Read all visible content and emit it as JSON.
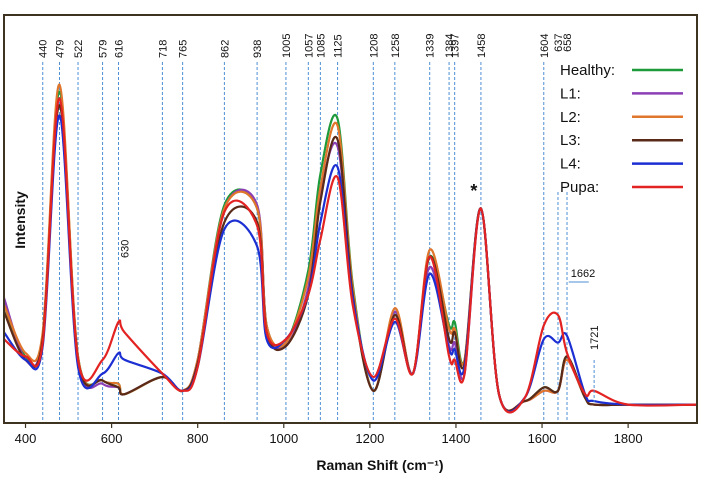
{
  "chart_data": {
    "type": "line",
    "xlabel": "Raman Shift (cm⁻¹)",
    "ylabel": "Intensity",
    "xlim": [
      350,
      1960
    ],
    "ylim": [
      0,
      1.0
    ],
    "x_ticks": [
      400,
      600,
      800,
      1000,
      1200,
      1400,
      1600,
      1800
    ],
    "grid": false,
    "legend_position": "top-right",
    "peak_markers": [
      440,
      479,
      522,
      579,
      616,
      718,
      765,
      862,
      938,
      1005,
      1057,
      1085,
      1125,
      1208,
      1258,
      1339,
      1384,
      1397,
      1458,
      1604,
      1637,
      1658
    ],
    "annotations": [
      {
        "text": "630",
        "x": 630
      },
      {
        "text": "*",
        "x": 1458
      },
      {
        "text": "1662",
        "x": 1662
      },
      {
        "text": "1721",
        "x": 1721
      }
    ],
    "x": [
      350,
      400,
      440,
      479,
      522,
      579,
      616,
      630,
      718,
      765,
      800,
      862,
      938,
      960,
      1005,
      1057,
      1085,
      1125,
      1160,
      1208,
      1258,
      1300,
      1339,
      1384,
      1397,
      1420,
      1458,
      1500,
      1560,
      1604,
      1637,
      1658,
      1700,
      1721,
      1800,
      1960
    ],
    "series": [
      {
        "name": "Healthy:",
        "color": "#1e9a3a",
        "values": [
          0.3,
          0.15,
          0.2,
          0.92,
          0.15,
          0.08,
          0.07,
          0.04,
          0.09,
          0.05,
          0.14,
          0.59,
          0.58,
          0.24,
          0.19,
          0.4,
          0.68,
          0.84,
          0.36,
          0.05,
          0.28,
          0.1,
          0.44,
          0.24,
          0.25,
          0.14,
          0.58,
          0.04,
          0.02,
          0.06,
          0.05,
          0.15,
          0.03,
          0.01,
          0.01,
          0.01
        ]
      },
      {
        "name": "L1:",
        "color": "#8b3fb5",
        "values": [
          0.32,
          0.14,
          0.21,
          0.9,
          0.14,
          0.07,
          0.06,
          0.04,
          0.09,
          0.05,
          0.14,
          0.58,
          0.59,
          0.24,
          0.18,
          0.35,
          0.62,
          0.76,
          0.34,
          0.05,
          0.28,
          0.1,
          0.41,
          0.18,
          0.19,
          0.1,
          0.58,
          0.04,
          0.02,
          0.05,
          0.05,
          0.14,
          0.03,
          0.01,
          0.01,
          0.01
        ]
      },
      {
        "name": "L2:",
        "color": "#e0752c",
        "values": [
          0.3,
          0.16,
          0.22,
          0.94,
          0.15,
          0.08,
          0.07,
          0.04,
          0.09,
          0.05,
          0.14,
          0.58,
          0.58,
          0.24,
          0.19,
          0.38,
          0.64,
          0.82,
          0.35,
          0.05,
          0.29,
          0.1,
          0.46,
          0.23,
          0.23,
          0.14,
          0.58,
          0.04,
          0.02,
          0.05,
          0.05,
          0.14,
          0.03,
          0.01,
          0.01,
          0.01
        ]
      },
      {
        "name": "L3:",
        "color": "#5a2a18",
        "values": [
          0.28,
          0.14,
          0.2,
          0.88,
          0.14,
          0.08,
          0.06,
          0.04,
          0.09,
          0.05,
          0.13,
          0.54,
          0.54,
          0.22,
          0.18,
          0.33,
          0.6,
          0.78,
          0.33,
          0.05,
          0.27,
          0.1,
          0.44,
          0.2,
          0.22,
          0.13,
          0.58,
          0.04,
          0.02,
          0.06,
          0.05,
          0.15,
          0.03,
          0.01,
          0.01,
          0.01
        ]
      },
      {
        "name": "L4:",
        "color": "#1c2fd2",
        "values": [
          0.22,
          0.14,
          0.18,
          0.85,
          0.12,
          0.1,
          0.16,
          0.14,
          0.1,
          0.05,
          0.12,
          0.52,
          0.47,
          0.2,
          0.2,
          0.33,
          0.54,
          0.7,
          0.32,
          0.08,
          0.25,
          0.1,
          0.39,
          0.17,
          0.17,
          0.12,
          0.58,
          0.04,
          0.03,
          0.2,
          0.19,
          0.21,
          0.04,
          0.02,
          0.01,
          0.01
        ]
      },
      {
        "name": "Pupa:",
        "color": "#e32222",
        "values": [
          0.2,
          0.15,
          0.19,
          0.9,
          0.14,
          0.14,
          0.25,
          0.22,
          0.1,
          0.05,
          0.12,
          0.57,
          0.53,
          0.22,
          0.2,
          0.33,
          0.49,
          0.67,
          0.3,
          0.09,
          0.26,
          0.1,
          0.44,
          0.15,
          0.14,
          0.1,
          0.58,
          0.04,
          0.03,
          0.24,
          0.27,
          0.16,
          0.04,
          0.05,
          0.01,
          0.01
        ]
      }
    ]
  }
}
